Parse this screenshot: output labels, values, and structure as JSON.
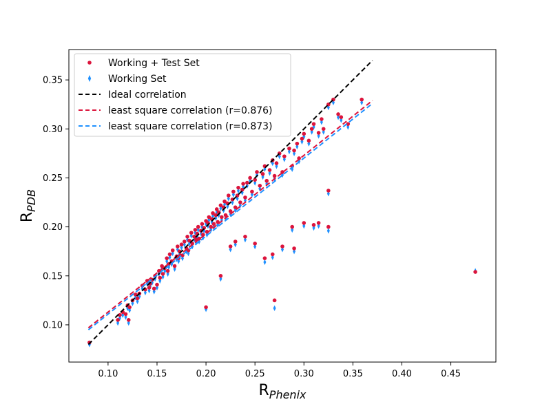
{
  "chart_data": {
    "type": "scatter",
    "xlabel": {
      "main": "R",
      "sub": "Phenix"
    },
    "ylabel": {
      "main": "R",
      "sub": "PDB"
    },
    "xlim": [
      0.06,
      0.496
    ],
    "ylim": [
      0.062,
      0.381
    ],
    "xticks": [
      0.1,
      0.15,
      0.2,
      0.25,
      0.3,
      0.35,
      0.4,
      0.45
    ],
    "xtick_labels": [
      "0.10",
      "0.15",
      "0.20",
      "0.25",
      "0.30",
      "0.35",
      "0.40",
      "0.45"
    ],
    "yticks": [
      0.1,
      0.15,
      0.2,
      0.25,
      0.3,
      0.35
    ],
    "ytick_labels": [
      "0.10",
      "0.15",
      "0.20",
      "0.25",
      "0.30",
      "0.35"
    ],
    "legend_position": "top-left",
    "legend": [
      {
        "label": "Working + Test Set",
        "kind": "marker-dot"
      },
      {
        "label": "Working Set",
        "kind": "marker-diamond"
      },
      {
        "label": "Ideal correlation",
        "kind": "dash-black"
      },
      {
        "label": "least square correlation (r=0.876)",
        "kind": "dash-red"
      },
      {
        "label": "least square correlation (r=0.873)",
        "kind": "dash-blue"
      }
    ],
    "colors": {
      "working_test": "#dc143c",
      "working": "#1e90ff",
      "ideal": "#000000",
      "fit_red": "#dc143c",
      "fit_blue": "#1e90ff"
    },
    "lines": [
      {
        "name": "Ideal correlation",
        "x": [
          0.08,
          0.37
        ],
        "y": [
          0.08,
          0.37
        ],
        "color": "#000000"
      },
      {
        "name": "least square correlation (r=0.876)",
        "x": [
          0.08,
          0.37
        ],
        "y": [
          0.097,
          0.329
        ],
        "color": "#dc143c"
      },
      {
        "name": "least square correlation (r=0.873)",
        "x": [
          0.08,
          0.37
        ],
        "y": [
          0.095,
          0.326
        ],
        "color": "#1e90ff"
      }
    ],
    "series": [
      {
        "name": "Working + Test Set",
        "marker": "circle",
        "color": "#dc143c",
        "x": [
          0.081,
          0.11,
          0.112,
          0.115,
          0.118,
          0.12,
          0.121,
          0.122,
          0.125,
          0.128,
          0.13,
          0.132,
          0.135,
          0.138,
          0.14,
          0.142,
          0.143,
          0.145,
          0.147,
          0.148,
          0.15,
          0.152,
          0.153,
          0.155,
          0.156,
          0.158,
          0.16,
          0.161,
          0.162,
          0.163,
          0.165,
          0.166,
          0.168,
          0.17,
          0.171,
          0.172,
          0.173,
          0.175,
          0.176,
          0.178,
          0.18,
          0.181,
          0.182,
          0.183,
          0.185,
          0.186,
          0.188,
          0.189,
          0.19,
          0.191,
          0.192,
          0.193,
          0.195,
          0.196,
          0.197,
          0.198,
          0.2,
          0.201,
          0.202,
          0.203,
          0.205,
          0.206,
          0.207,
          0.208,
          0.21,
          0.211,
          0.212,
          0.213,
          0.215,
          0.216,
          0.218,
          0.219,
          0.22,
          0.222,
          0.223,
          0.225,
          0.227,
          0.228,
          0.23,
          0.232,
          0.233,
          0.235,
          0.237,
          0.238,
          0.24,
          0.242,
          0.245,
          0.247,
          0.25,
          0.252,
          0.255,
          0.258,
          0.26,
          0.262,
          0.265,
          0.268,
          0.27,
          0.272,
          0.275,
          0.278,
          0.28,
          0.285,
          0.288,
          0.29,
          0.293,
          0.295,
          0.298,
          0.3,
          0.305,
          0.308,
          0.31,
          0.315,
          0.318,
          0.32,
          0.325,
          0.325,
          0.325,
          0.33,
          0.335,
          0.338,
          0.345,
          0.359,
          0.3,
          0.31,
          0.315,
          0.29,
          0.288,
          0.278,
          0.27,
          0.26,
          0.268,
          0.25,
          0.24,
          0.23,
          0.225,
          0.215,
          0.2,
          0.475
        ],
        "y": [
          0.082,
          0.105,
          0.11,
          0.113,
          0.111,
          0.12,
          0.105,
          0.118,
          0.125,
          0.131,
          0.127,
          0.132,
          0.14,
          0.136,
          0.145,
          0.138,
          0.142,
          0.146,
          0.137,
          0.15,
          0.141,
          0.155,
          0.148,
          0.16,
          0.152,
          0.158,
          0.168,
          0.155,
          0.162,
          0.172,
          0.165,
          0.176,
          0.16,
          0.17,
          0.18,
          0.168,
          0.175,
          0.182,
          0.171,
          0.185,
          0.178,
          0.19,
          0.176,
          0.186,
          0.194,
          0.183,
          0.19,
          0.197,
          0.187,
          0.193,
          0.2,
          0.188,
          0.196,
          0.203,
          0.192,
          0.199,
          0.206,
          0.195,
          0.204,
          0.21,
          0.2,
          0.208,
          0.214,
          0.203,
          0.212,
          0.218,
          0.205,
          0.215,
          0.222,
          0.21,
          0.22,
          0.226,
          0.212,
          0.224,
          0.232,
          0.216,
          0.228,
          0.236,
          0.22,
          0.232,
          0.24,
          0.225,
          0.238,
          0.244,
          0.23,
          0.245,
          0.25,
          0.236,
          0.248,
          0.256,
          0.242,
          0.254,
          0.262,
          0.247,
          0.258,
          0.268,
          0.252,
          0.265,
          0.275,
          0.256,
          0.272,
          0.28,
          0.262,
          0.278,
          0.285,
          0.27,
          0.29,
          0.295,
          0.288,
          0.3,
          0.305,
          0.296,
          0.31,
          0.3,
          0.325,
          0.237,
          0.2,
          0.33,
          0.315,
          0.312,
          0.305,
          0.33,
          0.204,
          0.202,
          0.204,
          0.178,
          0.2,
          0.18,
          0.125,
          0.168,
          0.172,
          0.183,
          0.19,
          0.185,
          0.18,
          0.15,
          0.118,
          0.154
        ]
      },
      {
        "name": "Working Set",
        "marker": "diamond",
        "color": "#1e90ff",
        "x": [
          0.081,
          0.11,
          0.112,
          0.115,
          0.118,
          0.12,
          0.121,
          0.122,
          0.125,
          0.128,
          0.13,
          0.132,
          0.135,
          0.138,
          0.14,
          0.142,
          0.143,
          0.145,
          0.147,
          0.148,
          0.15,
          0.152,
          0.153,
          0.155,
          0.156,
          0.158,
          0.16,
          0.161,
          0.162,
          0.163,
          0.165,
          0.166,
          0.168,
          0.17,
          0.171,
          0.172,
          0.173,
          0.175,
          0.176,
          0.178,
          0.18,
          0.181,
          0.182,
          0.183,
          0.185,
          0.186,
          0.188,
          0.189,
          0.19,
          0.191,
          0.192,
          0.193,
          0.195,
          0.196,
          0.197,
          0.198,
          0.2,
          0.201,
          0.202,
          0.203,
          0.205,
          0.206,
          0.207,
          0.208,
          0.21,
          0.211,
          0.212,
          0.213,
          0.215,
          0.216,
          0.218,
          0.219,
          0.22,
          0.222,
          0.223,
          0.225,
          0.227,
          0.228,
          0.23,
          0.232,
          0.233,
          0.235,
          0.237,
          0.238,
          0.24,
          0.242,
          0.245,
          0.247,
          0.25,
          0.252,
          0.255,
          0.258,
          0.26,
          0.262,
          0.265,
          0.268,
          0.27,
          0.272,
          0.275,
          0.278,
          0.28,
          0.285,
          0.288,
          0.29,
          0.293,
          0.295,
          0.298,
          0.3,
          0.305,
          0.308,
          0.31,
          0.315,
          0.318,
          0.32,
          0.325,
          0.325,
          0.325,
          0.33,
          0.335,
          0.338,
          0.345,
          0.359,
          0.3,
          0.31,
          0.315,
          0.29,
          0.288,
          0.278,
          0.27,
          0.26,
          0.268,
          0.25,
          0.24,
          0.23,
          0.225,
          0.215,
          0.2,
          0.475
        ],
        "y": [
          0.08,
          0.102,
          0.107,
          0.11,
          0.108,
          0.117,
          0.102,
          0.115,
          0.122,
          0.128,
          0.124,
          0.129,
          0.137,
          0.133,
          0.142,
          0.135,
          0.139,
          0.143,
          0.134,
          0.147,
          0.138,
          0.152,
          0.145,
          0.157,
          0.149,
          0.155,
          0.165,
          0.152,
          0.159,
          0.169,
          0.162,
          0.173,
          0.157,
          0.167,
          0.177,
          0.165,
          0.172,
          0.179,
          0.168,
          0.182,
          0.175,
          0.187,
          0.173,
          0.183,
          0.191,
          0.18,
          0.187,
          0.194,
          0.184,
          0.19,
          0.197,
          0.185,
          0.193,
          0.2,
          0.189,
          0.196,
          0.203,
          0.192,
          0.201,
          0.207,
          0.197,
          0.205,
          0.211,
          0.2,
          0.209,
          0.215,
          0.202,
          0.212,
          0.219,
          0.207,
          0.217,
          0.223,
          0.209,
          0.221,
          0.229,
          0.213,
          0.225,
          0.233,
          0.217,
          0.229,
          0.237,
          0.222,
          0.235,
          0.241,
          0.227,
          0.242,
          0.247,
          0.233,
          0.245,
          0.253,
          0.239,
          0.251,
          0.259,
          0.244,
          0.255,
          0.265,
          0.249,
          0.262,
          0.272,
          0.253,
          0.269,
          0.277,
          0.259,
          0.275,
          0.282,
          0.267,
          0.287,
          0.292,
          0.285,
          0.297,
          0.302,
          0.293,
          0.307,
          0.297,
          0.322,
          0.234,
          0.196,
          0.327,
          0.312,
          0.309,
          0.302,
          0.327,
          0.201,
          0.199,
          0.201,
          0.175,
          0.197,
          0.177,
          0.117,
          0.164,
          0.169,
          0.18,
          0.187,
          0.182,
          0.177,
          0.147,
          0.116,
          0.155
        ]
      }
    ]
  }
}
